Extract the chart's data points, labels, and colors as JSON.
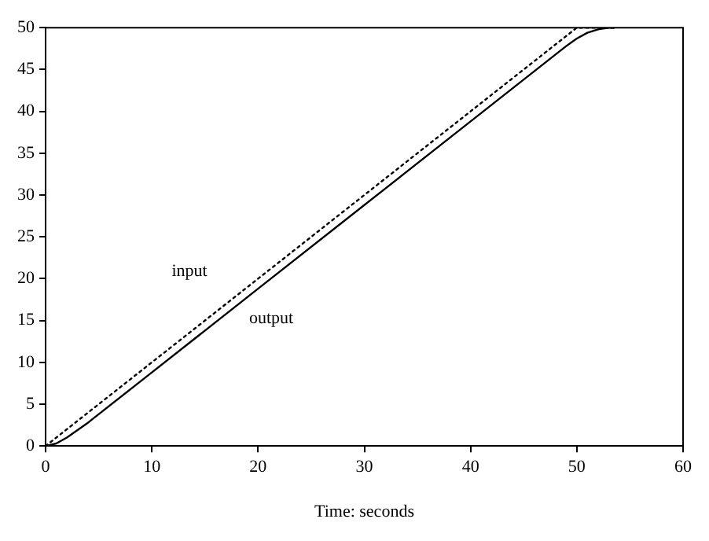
{
  "chart_data": {
    "type": "line",
    "xlabel": "Time: seconds",
    "xlim": [
      0,
      60
    ],
    "xticks": [
      0,
      10,
      20,
      30,
      40,
      50,
      60
    ],
    "ylim": [
      0,
      50
    ],
    "yticks": [
      0,
      5,
      10,
      15,
      20,
      25,
      30,
      35,
      40,
      45,
      50
    ],
    "grid": false,
    "legend": false,
    "marker": "none",
    "series": [
      {
        "name": "input",
        "color": "#000000",
        "line_style": "dotted",
        "x": [
          0,
          50,
          53.5
        ],
        "values": [
          0,
          50,
          50
        ]
      },
      {
        "name": "output",
        "color": "#000000",
        "line_style": "solid",
        "x": [
          0,
          1,
          2,
          3,
          4,
          10,
          20,
          30,
          40,
          49,
          50,
          51,
          52,
          53,
          53.5
        ],
        "values": [
          0,
          0.3,
          1,
          1.9,
          2.8,
          8.8,
          18.8,
          28.8,
          38.8,
          47.8,
          48.7,
          49.4,
          49.8,
          50,
          50
        ]
      }
    ]
  }
}
